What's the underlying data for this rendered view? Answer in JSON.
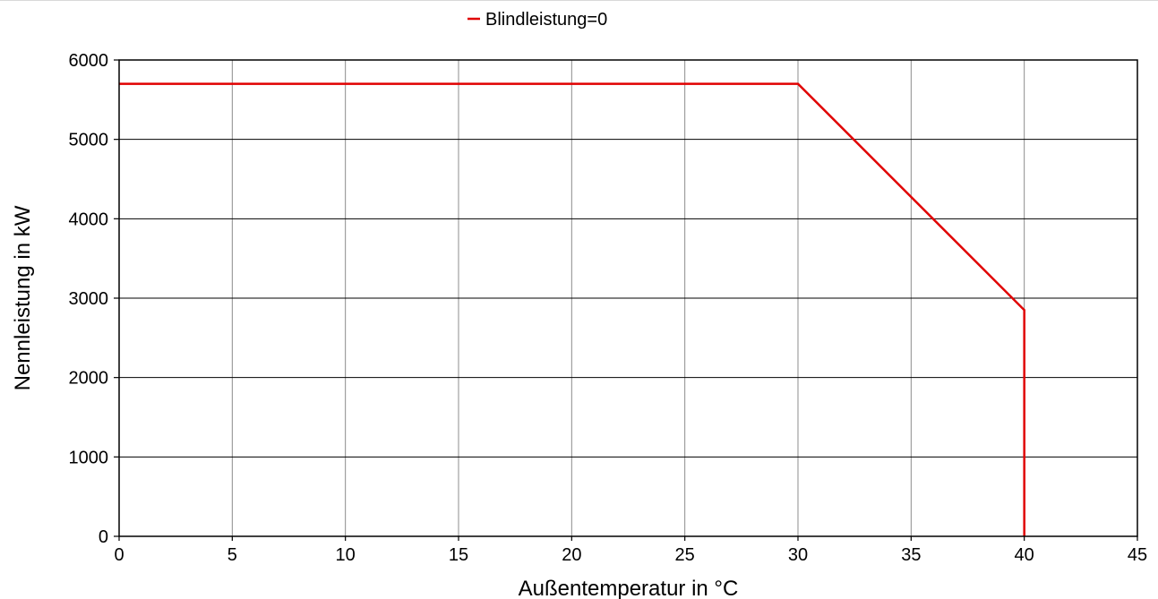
{
  "chart_data": {
    "type": "line",
    "title": "",
    "xlabel": "Außentemperatur in °C",
    "ylabel": "Nennleistung in kW",
    "xlim": [
      0,
      45
    ],
    "ylim": [
      0,
      6000
    ],
    "xticks": [
      0,
      5,
      10,
      15,
      20,
      25,
      30,
      35,
      40,
      45
    ],
    "yticks": [
      0,
      1000,
      2000,
      3000,
      4000,
      5000,
      6000
    ],
    "grid": true,
    "legend_position": "top-center",
    "series": [
      {
        "name": "Blindleistung=0",
        "color": "#e00000",
        "x": [
          0,
          30,
          40,
          40
        ],
        "y": [
          5700,
          5700,
          2850,
          0
        ]
      }
    ]
  }
}
